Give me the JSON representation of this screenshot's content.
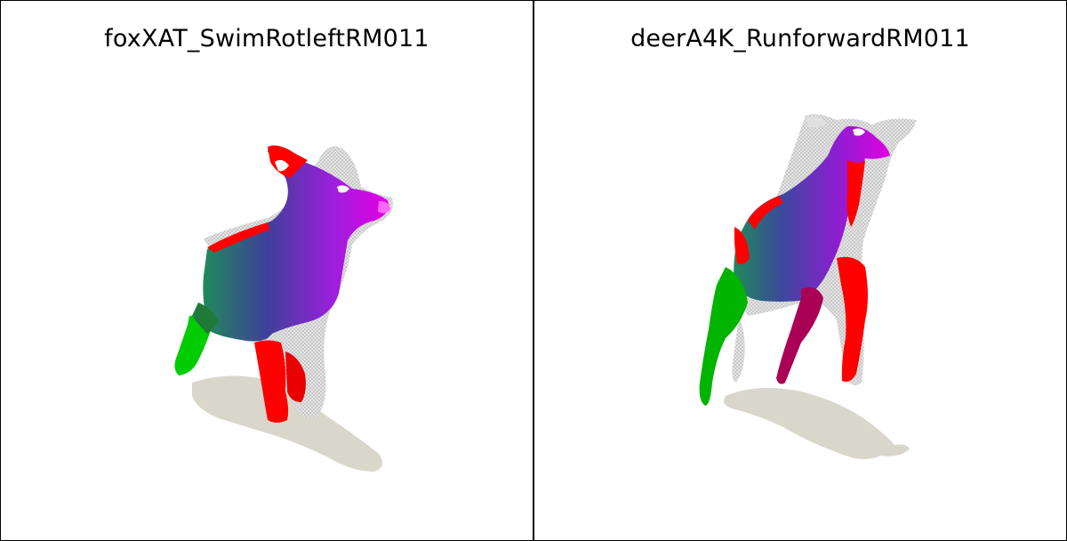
{
  "panels": [
    {
      "title": "foxXAT_SwimRotleftRM011"
    },
    {
      "title": "deerA4K_RunforwardRM011"
    }
  ],
  "colors": {
    "shadow": "#d9d6cc",
    "mesh": "#c8c8c8",
    "red": "#ff0000",
    "green": "#00cc00",
    "magenta": "#ee00ee",
    "purple": "#8a1fd0",
    "teal": "#2a7a6a"
  }
}
